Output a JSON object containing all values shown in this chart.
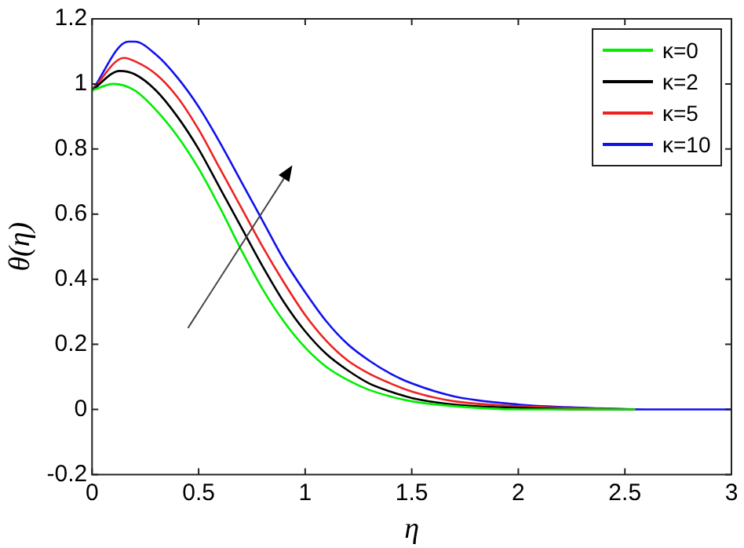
{
  "chart_data": {
    "type": "line",
    "xlabel": "η",
    "ylabel": "θ(η)",
    "xlim": [
      0,
      3
    ],
    "ylim": [
      -0.2,
      1.2
    ],
    "xticks": [
      0,
      0.5,
      1,
      1.5,
      2,
      2.5,
      3
    ],
    "yticks": [
      -0.2,
      0,
      0.2,
      0.4,
      0.6,
      0.8,
      1,
      1.2
    ],
    "grid": false,
    "legend": "top right",
    "marker": "none",
    "line_style": "solid",
    "series": [
      {
        "name": "κ=0",
        "color": "#00ee00",
        "x": [
          0,
          0.1,
          0.2,
          0.3,
          0.4,
          0.5,
          0.6,
          0.7,
          0.8,
          0.9,
          1.0,
          1.1,
          1.2,
          1.3,
          1.4,
          1.5,
          1.7,
          2.0,
          2.55
        ],
        "values": [
          0.98,
          1.0,
          0.98,
          0.92,
          0.84,
          0.74,
          0.62,
          0.49,
          0.37,
          0.27,
          0.19,
          0.13,
          0.09,
          0.06,
          0.04,
          0.025,
          0.01,
          0,
          0
        ]
      },
      {
        "name": "κ=2",
        "color": "#000000",
        "x": [
          0,
          0.13,
          0.2,
          0.3,
          0.4,
          0.5,
          0.6,
          0.7,
          0.8,
          0.9,
          1.0,
          1.1,
          1.2,
          1.3,
          1.4,
          1.5,
          1.7,
          2.0,
          2.3,
          2.55
        ],
        "values": [
          0.98,
          1.04,
          1.03,
          0.98,
          0.9,
          0.8,
          0.68,
          0.56,
          0.44,
          0.33,
          0.24,
          0.17,
          0.12,
          0.08,
          0.055,
          0.035,
          0.015,
          0.005,
          0,
          0
        ]
      },
      {
        "name": "κ=5",
        "color": "#ee2222",
        "x": [
          0,
          0.15,
          0.2,
          0.3,
          0.4,
          0.5,
          0.6,
          0.7,
          0.8,
          0.9,
          1.0,
          1.1,
          1.2,
          1.3,
          1.4,
          1.5,
          1.7,
          2.0,
          2.3,
          2.55
        ],
        "values": [
          0.98,
          1.08,
          1.07,
          1.03,
          0.96,
          0.86,
          0.74,
          0.62,
          0.5,
          0.39,
          0.29,
          0.21,
          0.15,
          0.11,
          0.08,
          0.055,
          0.025,
          0.01,
          0.003,
          0
        ]
      },
      {
        "name": "κ=10",
        "color": "#1111ee",
        "x": [
          0,
          0.17,
          0.2,
          0.3,
          0.4,
          0.5,
          0.6,
          0.7,
          0.8,
          0.9,
          1.0,
          1.1,
          1.2,
          1.3,
          1.4,
          1.5,
          1.7,
          2.0,
          2.3,
          2.6,
          3
        ],
        "values": [
          0.98,
          1.13,
          1.13,
          1.09,
          1.02,
          0.93,
          0.82,
          0.7,
          0.58,
          0.46,
          0.36,
          0.27,
          0.2,
          0.15,
          0.11,
          0.08,
          0.04,
          0.015,
          0.005,
          0,
          0
        ]
      }
    ]
  }
}
